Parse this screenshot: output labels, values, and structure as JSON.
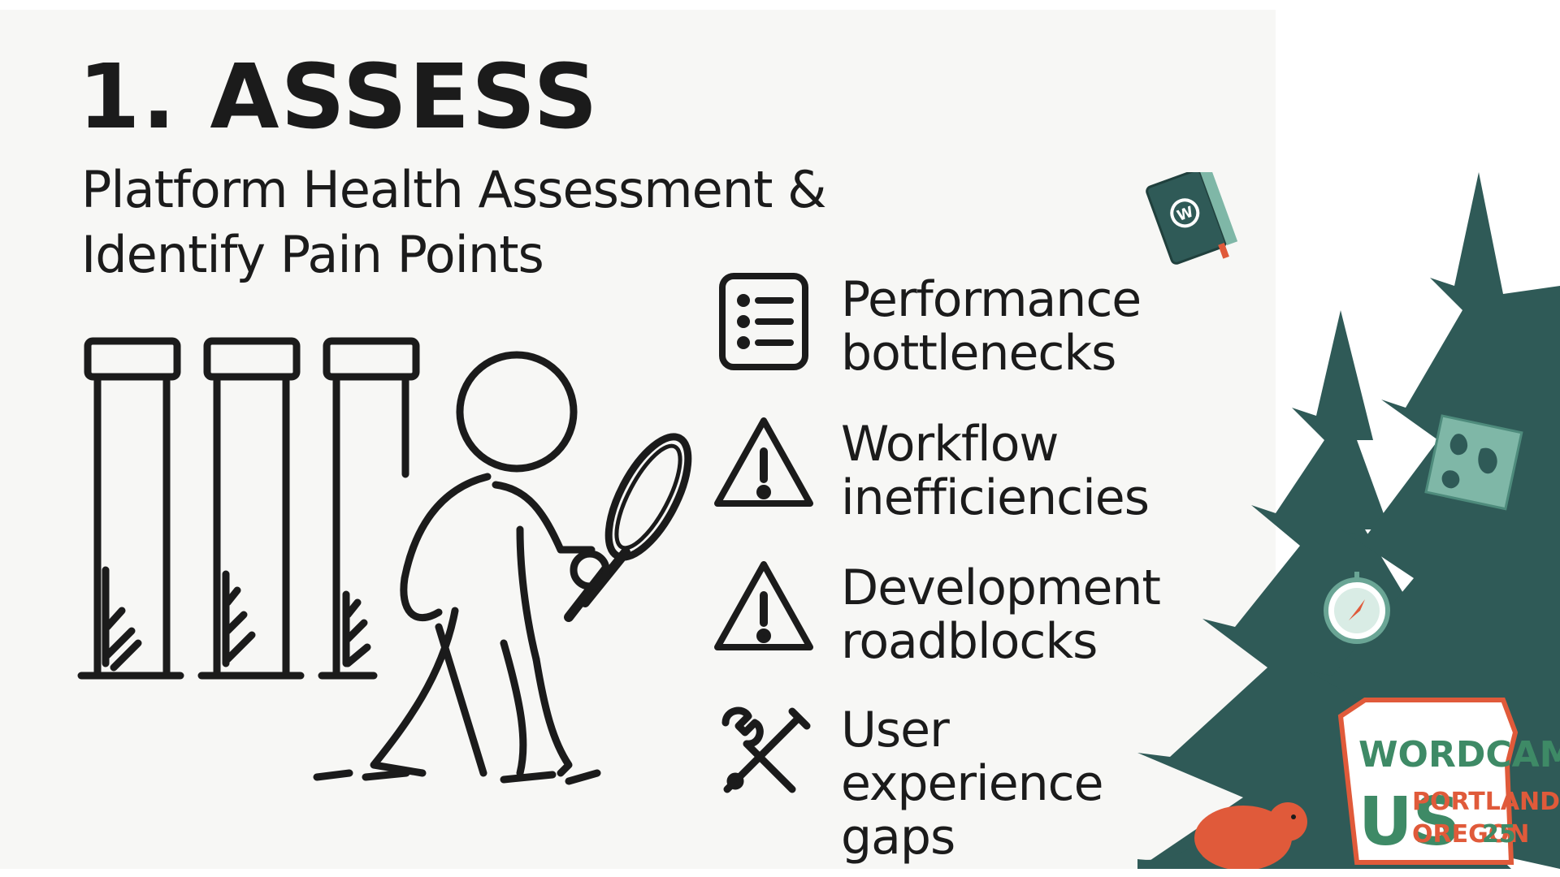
{
  "slide": {
    "title_number": "1.",
    "title_word": "ASSESS",
    "subtitle": "Platform Health Assessment & Identify Pain Points",
    "items": [
      {
        "icon": "list-icon",
        "label": "Performance bottlenecks"
      },
      {
        "icon": "warning-icon",
        "label": "Workflow inefficiencies"
      },
      {
        "icon": "warning-icon",
        "label": "Development roadblocks"
      },
      {
        "icon": "tools-icon",
        "label": "User experience gaps"
      }
    ]
  },
  "branding": {
    "logo_word1": "WORDCAMP",
    "logo_word2": "US",
    "logo_city": "PORTLAND",
    "logo_state": "OREGON",
    "logo_year": "25",
    "book_mark": "W"
  },
  "colors": {
    "ink": "#1b1b1b",
    "tree_green": "#2f5a57",
    "accent_orange": "#e05a3a",
    "badge_green": "#3e8a66",
    "background": "#f7f7f5"
  }
}
